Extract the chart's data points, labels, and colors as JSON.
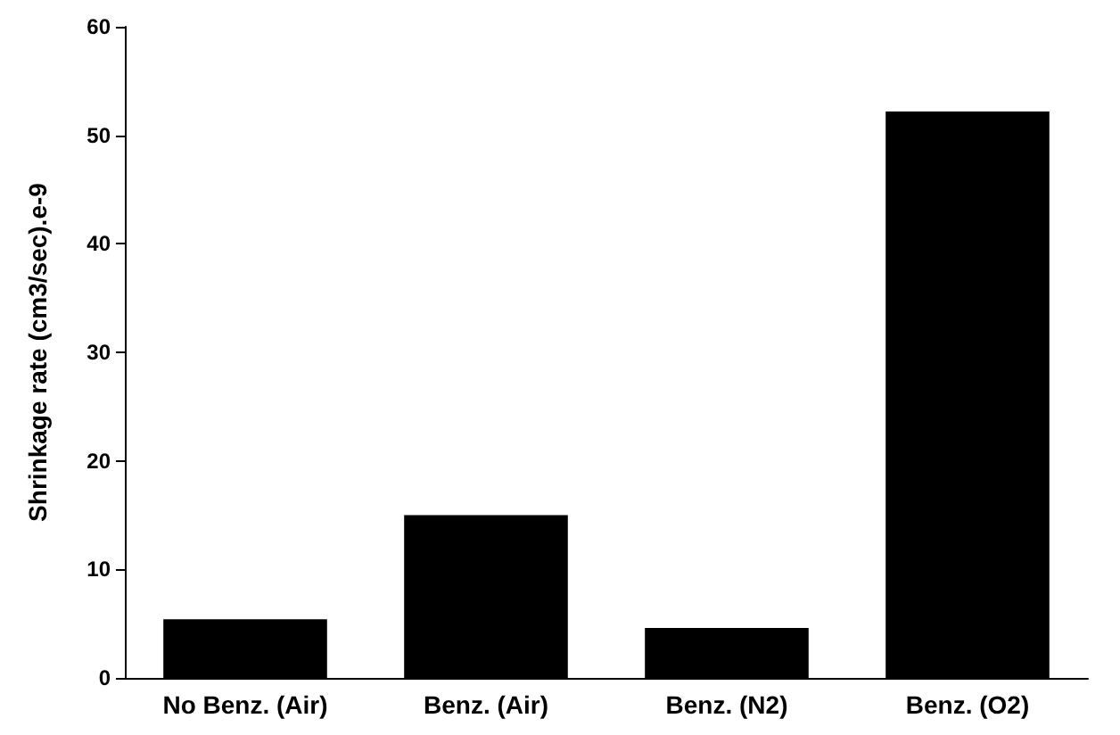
{
  "chart_data": {
    "type": "bar",
    "ylabel": "Shrinkage rate (cm3/sec).e-9",
    "categories": [
      "No Benz. (Air)",
      "Benz. (Air)",
      "Benz. (N2)",
      "Benz. (O2)"
    ],
    "values": [
      5.4,
      15,
      4.6,
      52.2
    ],
    "color": "#000000",
    "ylim": [
      0,
      60
    ],
    "yticks": [
      0,
      10,
      20,
      30,
      40,
      50,
      60
    ],
    "grid": false
  }
}
